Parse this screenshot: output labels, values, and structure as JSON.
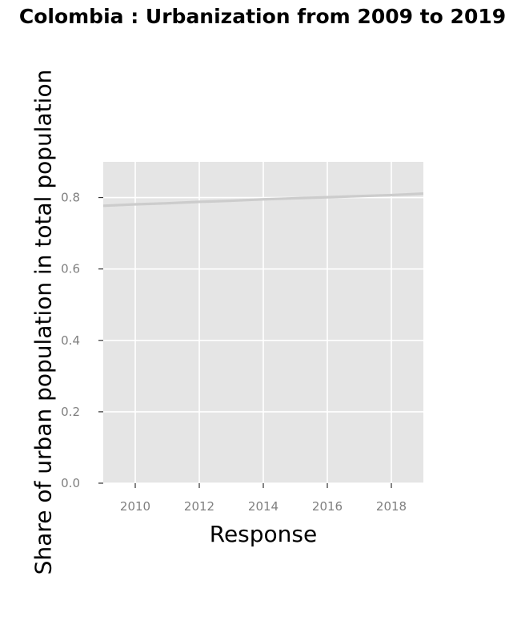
{
  "chart_data": {
    "type": "line",
    "title": "Colombia : Urbanization from 2009 to 2019",
    "xlabel": "Response",
    "ylabel": "Share of urban population in total population",
    "xlim": [
      2009,
      2019
    ],
    "ylim": [
      0,
      0.9
    ],
    "x_ticks": [
      2010,
      2012,
      2014,
      2016,
      2018
    ],
    "x_tick_labels": [
      "2010",
      "2012",
      "2014",
      "2016",
      "2018"
    ],
    "y_ticks": [
      0,
      0.2,
      0.4,
      0.6,
      0.8
    ],
    "y_tick_labels": [
      "0.0",
      "0.2",
      "0.4",
      "0.6",
      "0.8"
    ],
    "grid": true,
    "legend": "none",
    "series": [
      {
        "color": "#cccccc",
        "x": [
          2009,
          2010,
          2011,
          2012,
          2013,
          2014,
          2015,
          2016,
          2017,
          2018,
          2019
        ],
        "values": [
          0.777,
          0.781,
          0.784,
          0.788,
          0.791,
          0.795,
          0.798,
          0.801,
          0.804,
          0.807,
          0.811
        ]
      }
    ],
    "colors": {
      "panel_background": "#e5e5e5",
      "gridline": "#ffffff",
      "axis_tick": "#333333",
      "tick_label": "#7f7f7f"
    }
  }
}
